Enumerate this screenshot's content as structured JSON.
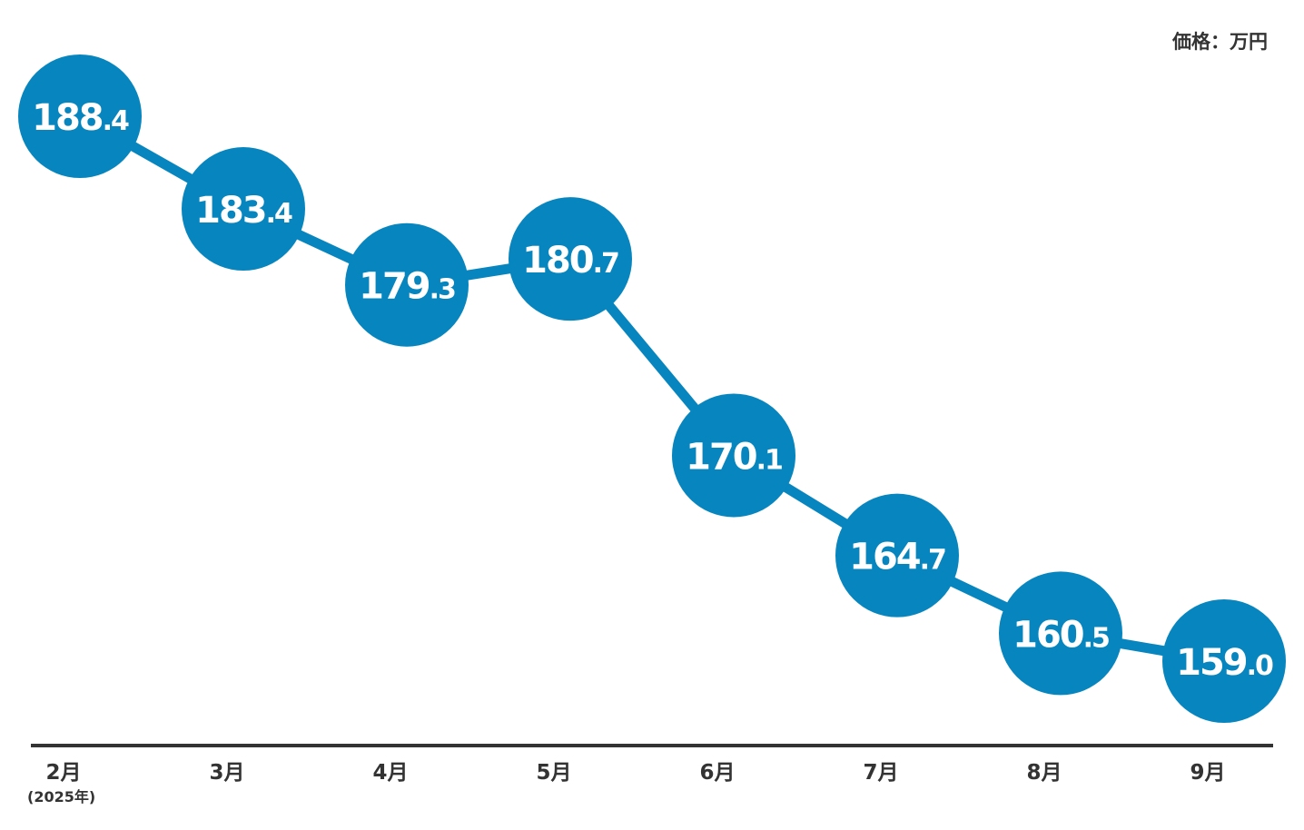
{
  "chart_data": {
    "type": "line",
    "unit_label": "価格：万円",
    "categories": [
      "2月",
      "3月",
      "4月",
      "5月",
      "6月",
      "7月",
      "8月",
      "9月"
    ],
    "year_note": "(2025年)",
    "values": [
      188.4,
      183.4,
      179.3,
      180.7,
      170.1,
      164.7,
      160.5,
      159.0
    ],
    "value_labels": [
      {
        "int": "188",
        "dec": ".4"
      },
      {
        "int": "183",
        "dec": ".4"
      },
      {
        "int": "179",
        "dec": ".3"
      },
      {
        "int": "180",
        "dec": ".7"
      },
      {
        "int": "170",
        "dec": ".1"
      },
      {
        "int": "164",
        "dec": ".7"
      },
      {
        "int": "160",
        "dec": ".5"
      },
      {
        "int": "159",
        "dec": ".0"
      }
    ],
    "series_color": "#0785be",
    "axis_color": "#333333",
    "text_color": "#333333"
  }
}
